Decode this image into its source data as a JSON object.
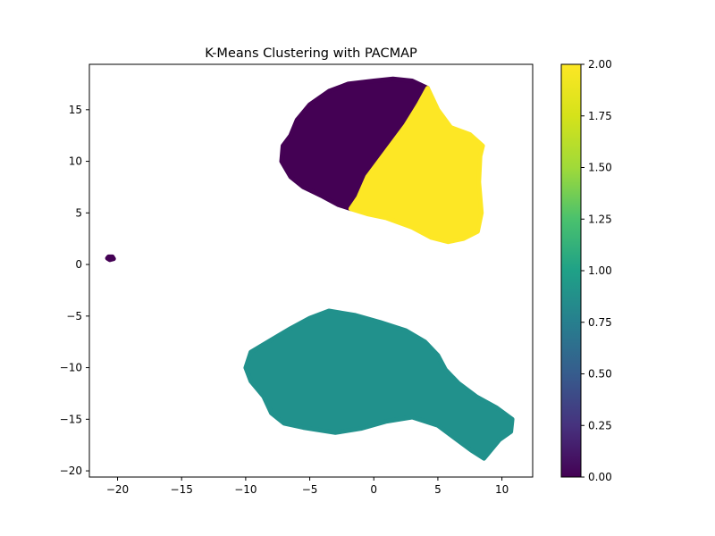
{
  "chart_data": {
    "type": "scatter",
    "title": "K-Means Clustering with PACMAP",
    "xlabel": "",
    "ylabel": "",
    "xlim": [
      -22.2,
      12.4
    ],
    "ylim": [
      -20.6,
      19.4
    ],
    "xticks": [
      -20,
      -15,
      -10,
      -5,
      0,
      5,
      10
    ],
    "yticks": [
      -20,
      -15,
      -10,
      -5,
      0,
      5,
      10,
      15
    ],
    "xtick_labels": [
      "−20",
      "−15",
      "−10",
      "−5",
      "0",
      "5",
      "10"
    ],
    "ytick_labels": [
      "−20",
      "−15",
      "−10",
      "−5",
      "0",
      "5",
      "10",
      "15"
    ],
    "grid": false,
    "colormap": "viridis",
    "colorbar": {
      "range": [
        0.0,
        2.0
      ],
      "ticks": [
        0.0,
        0.25,
        0.5,
        0.75,
        1.0,
        1.25,
        1.5,
        1.75,
        2.0
      ],
      "tick_labels": [
        "0.00",
        "0.25",
        "0.50",
        "0.75",
        "1.00",
        "1.25",
        "1.50",
        "1.75",
        "2.00"
      ]
    },
    "series": [
      {
        "label_value": 0,
        "color": "#440154",
        "regions": [
          [
            [
              -6.5,
              12.5
            ],
            [
              -6.0,
              14.0
            ],
            [
              -5.0,
              15.5
            ],
            [
              -3.5,
              16.8
            ],
            [
              -2.0,
              17.5
            ],
            [
              0.0,
              17.8
            ],
            [
              1.5,
              18.0
            ],
            [
              3.0,
              17.8
            ],
            [
              4.2,
              17.1
            ],
            [
              3.5,
              15.5
            ],
            [
              2.5,
              13.5
            ],
            [
              1.0,
              11.0
            ],
            [
              -0.5,
              8.5
            ],
            [
              -1.2,
              6.5
            ],
            [
              -1.8,
              5.4
            ],
            [
              -2.8,
              5.8
            ],
            [
              -4.0,
              6.6
            ],
            [
              -5.5,
              7.5
            ],
            [
              -6.5,
              8.5
            ],
            [
              -7.2,
              10.0
            ],
            [
              -7.1,
              11.5
            ]
          ],
          [
            [
              -20.7,
              0.75
            ],
            [
              -20.4,
              0.75
            ],
            [
              -20.3,
              0.55
            ],
            [
              -20.6,
              0.45
            ],
            [
              -20.8,
              0.6
            ]
          ]
        ]
      },
      {
        "label_value": 1,
        "color": "#21918c",
        "regions": [
          [
            [
              -10.0,
              -10.0
            ],
            [
              -9.6,
              -8.5
            ],
            [
              -8.0,
              -7.3
            ],
            [
              -6.5,
              -6.2
            ],
            [
              -5.0,
              -5.2
            ],
            [
              -3.5,
              -4.5
            ],
            [
              -1.5,
              -4.9
            ],
            [
              0.5,
              -5.6
            ],
            [
              2.5,
              -6.4
            ],
            [
              4.0,
              -7.5
            ],
            [
              5.0,
              -8.8
            ],
            [
              5.6,
              -10.2
            ],
            [
              6.6,
              -11.5
            ],
            [
              8.0,
              -12.8
            ],
            [
              9.6,
              -13.9
            ],
            [
              10.8,
              -15.0
            ],
            [
              10.7,
              -16.2
            ],
            [
              9.8,
              -17.0
            ],
            [
              8.6,
              -18.8
            ],
            [
              7.6,
              -18.0
            ],
            [
              6.4,
              -16.9
            ],
            [
              5.0,
              -15.6
            ],
            [
              3.0,
              -14.8
            ],
            [
              1.0,
              -15.2
            ],
            [
              -1.0,
              -15.9
            ],
            [
              -3.0,
              -16.3
            ],
            [
              -5.5,
              -15.8
            ],
            [
              -7.0,
              -15.4
            ],
            [
              -8.0,
              -14.4
            ],
            [
              -8.6,
              -12.8
            ],
            [
              -9.6,
              -11.3
            ]
          ]
        ]
      },
      {
        "label_value": 2,
        "color": "#fde725",
        "regions": [
          [
            [
              4.2,
              17.1
            ],
            [
              5.0,
              15.0
            ],
            [
              6.0,
              13.3
            ],
            [
              7.5,
              12.6
            ],
            [
              8.5,
              11.5
            ],
            [
              8.3,
              10.5
            ],
            [
              8.2,
              8.0
            ],
            [
              8.4,
              5.0
            ],
            [
              8.1,
              3.2
            ],
            [
              7.0,
              2.5
            ],
            [
              5.8,
              2.2
            ],
            [
              4.5,
              2.6
            ],
            [
              3.0,
              3.6
            ],
            [
              1.0,
              4.5
            ],
            [
              -0.5,
              4.9
            ],
            [
              -1.8,
              5.4
            ],
            [
              -1.2,
              6.5
            ],
            [
              -0.5,
              8.5
            ],
            [
              1.0,
              11.0
            ],
            [
              2.5,
              13.5
            ],
            [
              3.5,
              15.5
            ]
          ]
        ]
      }
    ]
  }
}
